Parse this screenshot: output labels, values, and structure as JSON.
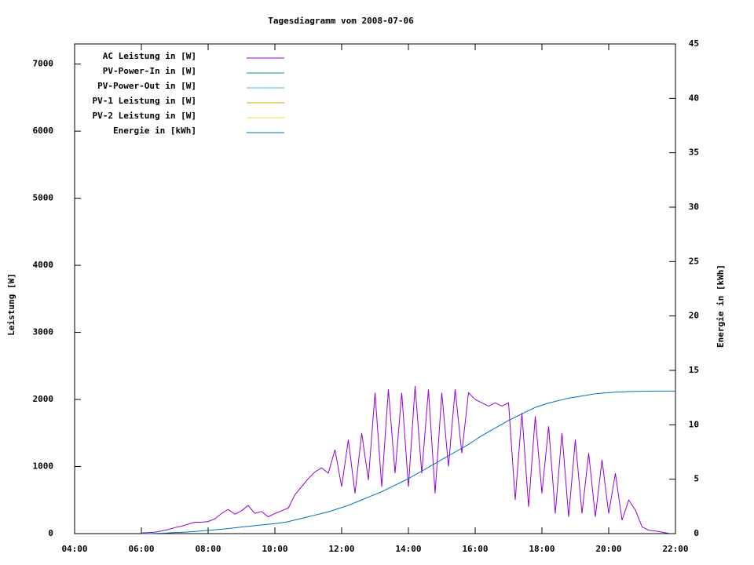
{
  "chart_data": {
    "type": "line",
    "title": "Tagesdiagramm vom 2008-07-06",
    "ylabel": "Leistung [W]",
    "y2label": "Energie in [kWh]",
    "xlim": [
      4,
      22
    ],
    "xticks": [
      {
        "value": 4,
        "label": "04:00"
      },
      {
        "value": 6,
        "label": "06:00"
      },
      {
        "value": 8,
        "label": "08:00"
      },
      {
        "value": 10,
        "label": "10:00"
      },
      {
        "value": 12,
        "label": "12:00"
      },
      {
        "value": 14,
        "label": "14:00"
      },
      {
        "value": 16,
        "label": "16:00"
      },
      {
        "value": 18,
        "label": "18:00"
      },
      {
        "value": 20,
        "label": "20:00"
      },
      {
        "value": 22,
        "label": "22:00"
      }
    ],
    "ylim": [
      0,
      7300
    ],
    "yticks": [
      0,
      1000,
      2000,
      3000,
      4000,
      5000,
      6000,
      7000
    ],
    "y2lim": [
      0,
      45
    ],
    "y2ticks": [
      0,
      5,
      10,
      15,
      20,
      25,
      30,
      35,
      40,
      45
    ],
    "legend": "top-left",
    "x": [
      6.0,
      6.2,
      6.4,
      6.6,
      6.8,
      7.0,
      7.2,
      7.4,
      7.6,
      7.8,
      8.0,
      8.2,
      8.4,
      8.6,
      8.8,
      9.0,
      9.2,
      9.4,
      9.6,
      9.8,
      10.0,
      10.2,
      10.4,
      10.6,
      10.8,
      11.0,
      11.2,
      11.4,
      11.6,
      11.8,
      12.0,
      12.2,
      12.4,
      12.6,
      12.8,
      13.0,
      13.2,
      13.4,
      13.6,
      13.8,
      14.0,
      14.2,
      14.4,
      14.6,
      14.8,
      15.0,
      15.2,
      15.4,
      15.6,
      15.8,
      16.0,
      16.2,
      16.4,
      16.6,
      16.8,
      17.0,
      17.2,
      17.4,
      17.6,
      17.8,
      18.0,
      18.2,
      18.4,
      18.6,
      18.8,
      19.0,
      19.2,
      19.4,
      19.6,
      19.8,
      20.0,
      20.2,
      20.4,
      20.6,
      20.8,
      21.0,
      21.2,
      21.4,
      21.6,
      21.8,
      22.0
    ],
    "series": [
      {
        "name": "AC Leistung in [W]",
        "color": "#9400d3",
        "values": [
          10,
          15,
          20,
          40,
          60,
          90,
          110,
          140,
          170,
          170,
          180,
          220,
          300,
          360,
          290,
          340,
          420,
          300,
          330,
          250,
          300,
          340,
          380,
          580,
          700,
          820,
          920,
          980,
          900,
          1250,
          700,
          1400,
          600,
          1500,
          800,
          2100,
          700,
          2150,
          900,
          2100,
          700,
          2200,
          900,
          2150,
          600,
          2100,
          1000,
          2150,
          1200,
          2100,
          2000,
          1950,
          1900,
          1950,
          1900,
          1950,
          500,
          1800,
          400,
          1750,
          600,
          1600,
          300,
          1500,
          250,
          1400,
          300,
          1200,
          250,
          1100,
          300,
          900,
          200,
          500,
          350,
          100,
          50,
          40,
          20,
          5,
          null
        ]
      },
      {
        "name": "PV-Power-In in [W]",
        "color": "#009e73",
        "values": [
          null,
          null,
          null,
          null,
          null,
          null,
          null,
          null,
          null,
          null,
          null,
          null,
          null,
          null,
          null,
          null,
          null,
          null,
          null,
          null,
          null,
          null,
          null,
          null,
          null,
          null,
          null,
          null,
          null,
          null,
          null,
          null,
          null,
          null,
          null,
          null,
          null,
          null,
          null,
          null,
          null,
          null,
          null,
          null,
          null,
          null,
          null,
          null,
          null,
          null,
          null,
          null,
          null,
          null,
          null,
          null,
          null,
          null,
          null,
          null,
          null,
          null,
          null,
          null,
          null,
          null,
          null,
          null,
          null,
          null,
          null,
          null,
          null,
          null,
          null,
          null,
          null,
          null,
          null,
          null,
          null
        ]
      },
      {
        "name": "PV-Power-Out in [W]",
        "color": "#56b4e9",
        "values": [
          null,
          null,
          null,
          null,
          null,
          null,
          null,
          null,
          null,
          null,
          null,
          null,
          null,
          null,
          null,
          null,
          null,
          null,
          null,
          null,
          null,
          null,
          null,
          null,
          null,
          null,
          null,
          null,
          null,
          null,
          null,
          null,
          null,
          null,
          null,
          null,
          null,
          null,
          null,
          null,
          null,
          null,
          null,
          null,
          null,
          null,
          null,
          null,
          null,
          null,
          null,
          null,
          null,
          null,
          null,
          null,
          null,
          null,
          null,
          null,
          null,
          null,
          null,
          null,
          null,
          null,
          null,
          null,
          null,
          null,
          null,
          null,
          null,
          null,
          null,
          null,
          null,
          null,
          null,
          null,
          null
        ]
      },
      {
        "name": "PV-1 Leistung in [W]",
        "color": "#e69f00",
        "values": [
          null,
          null,
          null,
          null,
          null,
          null,
          null,
          null,
          null,
          null,
          null,
          null,
          null,
          null,
          null,
          null,
          null,
          null,
          null,
          null,
          null,
          null,
          null,
          null,
          null,
          null,
          null,
          null,
          null,
          null,
          null,
          null,
          null,
          null,
          null,
          null,
          null,
          null,
          null,
          null,
          null,
          null,
          null,
          null,
          null,
          null,
          null,
          null,
          null,
          null,
          null,
          null,
          null,
          null,
          null,
          null,
          null,
          null,
          null,
          null,
          null,
          null,
          null,
          null,
          null,
          null,
          null,
          null,
          null,
          null,
          null,
          null,
          null,
          null,
          null,
          null,
          null,
          null,
          null,
          null,
          null
        ]
      },
      {
        "name": "PV-2 Leistung in [W]",
        "color": "#f0e442",
        "values": [
          null,
          null,
          null,
          null,
          null,
          null,
          null,
          null,
          null,
          null,
          null,
          null,
          null,
          null,
          null,
          null,
          null,
          null,
          null,
          null,
          null,
          null,
          null,
          null,
          null,
          null,
          null,
          null,
          null,
          null,
          null,
          null,
          null,
          null,
          null,
          null,
          null,
          null,
          null,
          null,
          null,
          null,
          null,
          null,
          null,
          null,
          null,
          null,
          null,
          null,
          null,
          null,
          null,
          null,
          null,
          null,
          null,
          null,
          null,
          null,
          null,
          null,
          null,
          null,
          null,
          null,
          null,
          null,
          null,
          null,
          null,
          null,
          null,
          null,
          null,
          null,
          null,
          null,
          null,
          null,
          null
        ]
      },
      {
        "name": "Energie in [kWh]",
        "color": "#0072b2",
        "axis": "y2",
        "values": [
          0,
          0,
          0.02,
          0.04,
          0.06,
          0.1,
          0.12,
          0.15,
          0.2,
          0.25,
          0.3,
          0.35,
          0.4,
          0.47,
          0.53,
          0.6,
          0.67,
          0.73,
          0.8,
          0.86,
          0.92,
          1.0,
          1.1,
          1.25,
          1.4,
          1.55,
          1.7,
          1.85,
          2.0,
          2.2,
          2.4,
          2.6,
          2.85,
          3.1,
          3.35,
          3.6,
          3.85,
          4.15,
          4.45,
          4.75,
          5.05,
          5.4,
          5.75,
          6.1,
          6.45,
          6.8,
          7.15,
          7.5,
          7.85,
          8.2,
          8.6,
          9.0,
          9.35,
          9.7,
          10.05,
          10.4,
          10.7,
          11.0,
          11.3,
          11.6,
          11.8,
          12.0,
          12.15,
          12.3,
          12.45,
          12.55,
          12.65,
          12.75,
          12.85,
          12.9,
          12.95,
          13.0,
          13.02,
          13.05,
          13.07,
          13.08,
          13.09,
          13.1,
          13.1,
          13.1,
          13.1
        ]
      }
    ]
  }
}
